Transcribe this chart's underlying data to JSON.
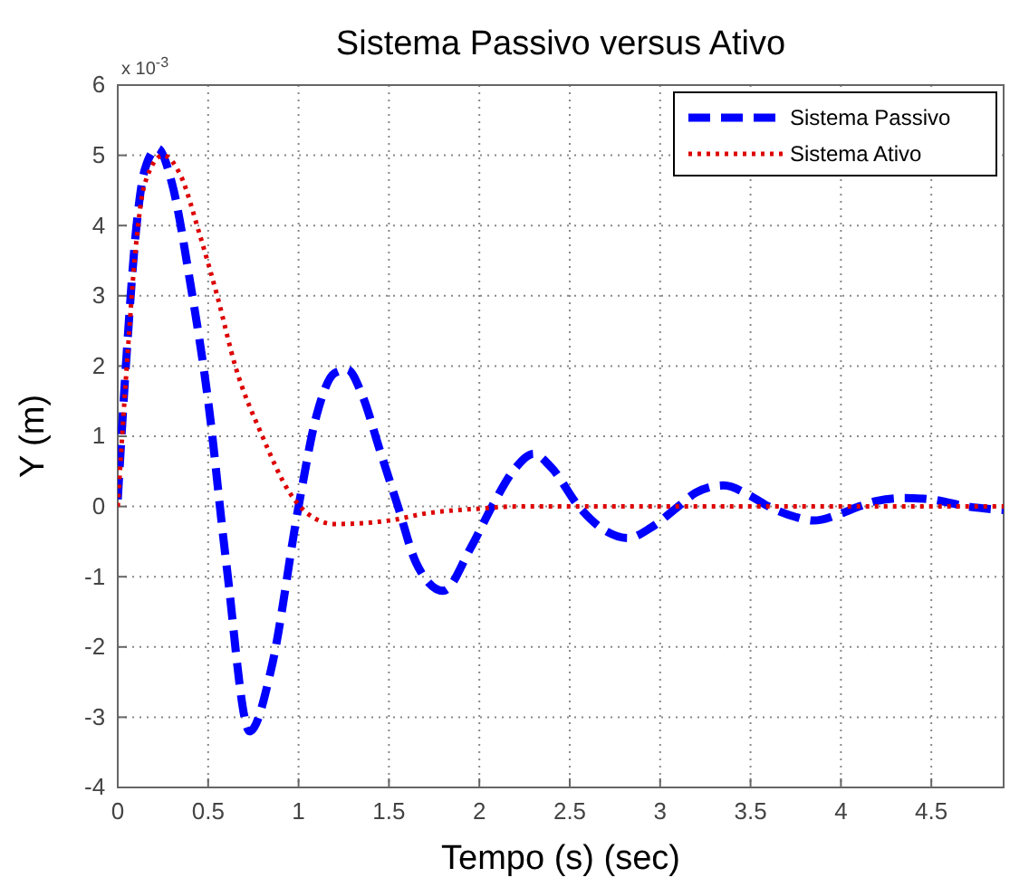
{
  "chart_data": {
    "type": "line",
    "title": "Sistema Passivo versus Ativo",
    "xlabel": "Tempo (s) (sec)",
    "ylabel": "Y (m)",
    "annotations": [
      "x 10$^{-3}$"
    ],
    "xlim": [
      0,
      4.9
    ],
    "xticks": [
      0,
      0.5,
      1,
      1.5,
      2,
      2.5,
      3,
      3.5,
      4,
      4.5
    ],
    "ylim": [
      -4,
      6
    ],
    "yticks": [
      -4,
      -3,
      -2,
      -1,
      0,
      1,
      2,
      3,
      4,
      5,
      6
    ],
    "grid": true,
    "legend": "top right",
    "series": [
      {
        "name": "Sistema Passivo",
        "color": "#0000ff",
        "line_style": "dashed",
        "x": [
          0,
          0.05,
          0.1,
          0.15,
          0.22,
          0.3,
          0.4,
          0.5,
          0.6,
          0.73,
          0.85,
          1.0,
          1.1,
          1.2,
          1.27,
          1.35,
          1.45,
          1.55,
          1.65,
          1.8,
          1.95,
          2.07,
          2.2,
          2.3,
          2.4,
          2.55,
          2.7,
          2.82,
          2.95,
          3.1,
          3.2,
          3.35,
          3.5,
          3.6,
          3.75,
          3.85,
          4.0,
          4.1,
          4.2,
          4.35,
          4.5,
          4.7,
          4.9
        ],
        "values": [
          0.1,
          2.2,
          3.9,
          4.8,
          5.1,
          4.6,
          3.2,
          1.5,
          -0.8,
          -3.2,
          -2.3,
          0,
          1.3,
          1.9,
          1.95,
          1.6,
          0.8,
          0,
          -0.8,
          -1.2,
          -0.6,
          0,
          0.55,
          0.75,
          0.55,
          0,
          -0.35,
          -0.45,
          -0.3,
          0,
          0.2,
          0.3,
          0.15,
          0,
          -0.15,
          -0.2,
          -0.1,
          0,
          0.08,
          0.12,
          0.1,
          0,
          -0.05
        ]
      },
      {
        "name": "Sistema Ativo",
        "color": "#dd0000",
        "line_style": "dotted",
        "x": [
          0,
          0.05,
          0.1,
          0.15,
          0.25,
          0.35,
          0.45,
          0.55,
          0.65,
          0.8,
          0.95,
          1.05,
          1.2,
          1.5,
          1.7,
          2.0,
          2.2,
          2.6,
          3.0,
          3.5,
          4.0,
          4.5,
          4.9
        ],
        "values": [
          0,
          2.0,
          3.7,
          4.6,
          5.0,
          4.7,
          3.9,
          3.0,
          2.0,
          1.0,
          0.2,
          -0.1,
          -0.25,
          -0.2,
          -0.1,
          -0.03,
          0,
          0,
          0,
          0,
          0,
          0,
          0
        ]
      }
    ]
  }
}
